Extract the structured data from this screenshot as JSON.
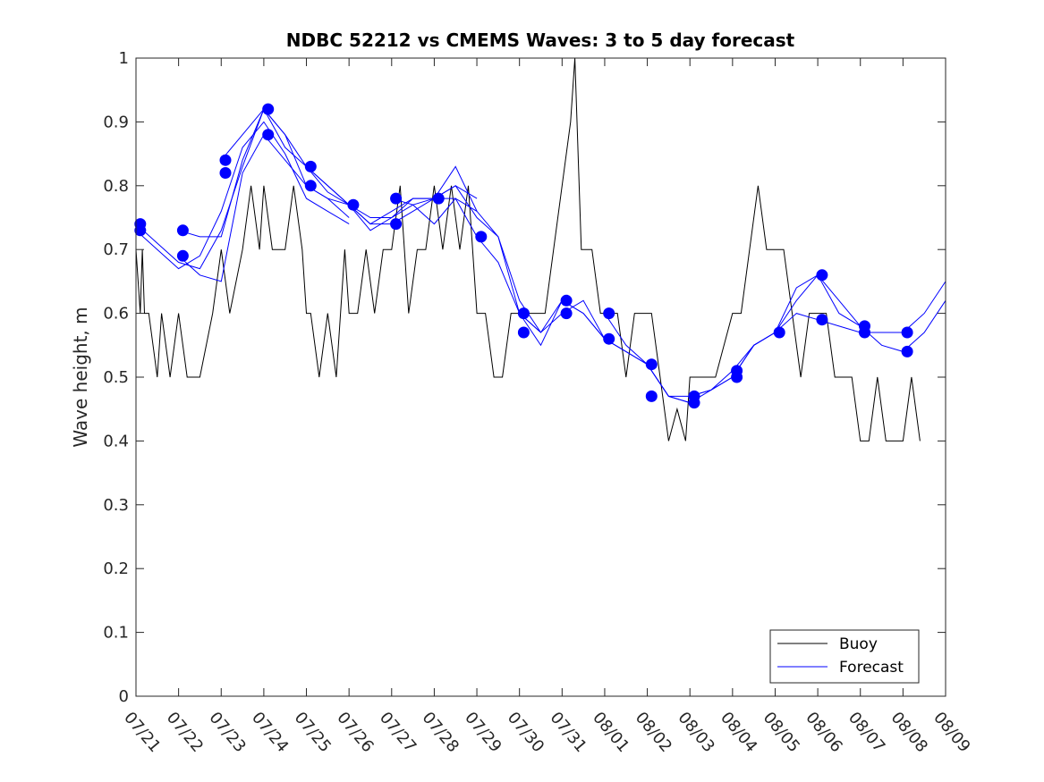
{
  "chart_data": {
    "type": "line",
    "title": "NDBC 52212 vs CMEMS Waves: 3 to 5 day forecast",
    "xlabel": "",
    "ylabel": "Wave height, m",
    "xlim": [
      "07/21",
      "08/09"
    ],
    "ylim": [
      0,
      1
    ],
    "yticks": [
      "0",
      "0.1",
      "0.2",
      "0.3",
      "0.4",
      "0.5",
      "0.6",
      "0.7",
      "0.8",
      "0.9",
      "1"
    ],
    "xticks": [
      "07/21",
      "07/22",
      "07/23",
      "07/24",
      "07/25",
      "07/26",
      "07/27",
      "07/28",
      "07/29",
      "07/30",
      "07/31",
      "08/01",
      "08/02",
      "08/03",
      "08/04",
      "08/05",
      "08/06",
      "08/07",
      "08/08",
      "08/09"
    ],
    "legend": {
      "placement": "bottom-right",
      "entries": [
        "Buoy",
        "Forecast"
      ]
    },
    "colors": {
      "buoy": "#000000",
      "forecast": "#0000ff"
    },
    "series": [
      {
        "name": "Buoy",
        "x": [
          0,
          0.1,
          0.15,
          0.2,
          0.3,
          0.5,
          0.6,
          0.8,
          1.0,
          1.2,
          1.5,
          1.8,
          2.0,
          2.2,
          2.5,
          2.7,
          2.9,
          3.0,
          3.2,
          3.5,
          3.7,
          3.9,
          4.0,
          4.1,
          4.3,
          4.5,
          4.7,
          4.9,
          5.0,
          5.2,
          5.4,
          5.6,
          5.8,
          6.0,
          6.2,
          6.4,
          6.6,
          6.8,
          7.0,
          7.2,
          7.4,
          7.6,
          7.8,
          8.0,
          8.2,
          8.4,
          8.6,
          8.8,
          9.0,
          9.2,
          9.4,
          9.6,
          9.8,
          10.0,
          10.2,
          10.3,
          10.35,
          10.4,
          10.45,
          10.55,
          10.7,
          10.9,
          11.1,
          11.3,
          11.5,
          11.7,
          11.9,
          12.1,
          12.3,
          12.5,
          12.7,
          12.9,
          13.0,
          13.1,
          13.2,
          13.4,
          13.6,
          13.8,
          14.0,
          14.2,
          14.4,
          14.6,
          14.8,
          15.0,
          15.2,
          15.4,
          15.6,
          15.8,
          16.0,
          16.2,
          16.4,
          16.6,
          16.8,
          17.0,
          17.2,
          17.4,
          17.6,
          17.8,
          18.0,
          18.2,
          18.4
        ],
        "values": [
          0.7,
          0.6,
          0.7,
          0.6,
          0.6,
          0.5,
          0.6,
          0.5,
          0.6,
          0.5,
          0.5,
          0.6,
          0.7,
          0.6,
          0.7,
          0.8,
          0.7,
          0.8,
          0.7,
          0.7,
          0.8,
          0.7,
          0.6,
          0.6,
          0.5,
          0.6,
          0.5,
          0.7,
          0.6,
          0.6,
          0.7,
          0.6,
          0.7,
          0.7,
          0.8,
          0.6,
          0.7,
          0.7,
          0.8,
          0.7,
          0.8,
          0.7,
          0.8,
          0.6,
          0.6,
          0.5,
          0.5,
          0.6,
          0.6,
          0.6,
          0.6,
          0.6,
          0.7,
          0.8,
          0.9,
          1.0,
          0.9,
          0.8,
          0.7,
          0.7,
          0.7,
          0.6,
          0.6,
          0.6,
          0.5,
          0.6,
          0.6,
          0.6,
          0.5,
          0.4,
          0.45,
          0.4,
          0.5,
          0.5,
          0.5,
          0.5,
          0.5,
          0.55,
          0.6,
          0.6,
          0.7,
          0.8,
          0.7,
          0.7,
          0.7,
          0.6,
          0.5,
          0.6,
          0.6,
          0.6,
          0.5,
          0.5,
          0.5,
          0.4,
          0.4,
          0.5,
          0.4,
          0.4,
          0.4,
          0.5,
          0.4
        ]
      },
      {
        "name": "Forecast",
        "segments": [
          {
            "x": [
              0.0,
              0.5,
              1.0,
              1.5,
              2.0,
              2.5,
              3.0,
              3.5,
              4.0,
              4.5,
              5.0
            ],
            "values": [
              0.74,
              0.71,
              0.68,
              0.67,
              0.73,
              0.83,
              0.92,
              0.88,
              0.8,
              0.78,
              0.75
            ]
          },
          {
            "x": [
              0.0,
              0.5,
              1.0,
              1.5,
              2.0,
              2.5,
              3.0,
              3.5,
              4.0,
              4.5,
              5.0
            ],
            "values": [
              0.73,
              0.7,
              0.67,
              0.69,
              0.76,
              0.86,
              0.9,
              0.85,
              0.78,
              0.76,
              0.74
            ]
          },
          {
            "x": [
              1.0,
              1.5,
              2.0,
              2.5,
              3.0,
              3.5,
              4.0,
              4.5,
              5.0,
              5.5,
              6.0,
              6.5,
              7.0,
              7.5,
              8.0
            ],
            "values": [
              0.73,
              0.72,
              0.72,
              0.84,
              0.92,
              0.86,
              0.83,
              0.8,
              0.77,
              0.75,
              0.75,
              0.77,
              0.78,
              0.8,
              0.78
            ]
          },
          {
            "x": [
              1.0,
              1.5,
              2.0,
              2.5,
              3.0,
              3.5,
              4.0,
              4.5,
              5.0,
              5.5,
              6.0,
              6.5,
              7.0,
              7.5,
              8.0
            ],
            "values": [
              0.69,
              0.66,
              0.65,
              0.82,
              0.88,
              0.84,
              0.8,
              0.78,
              0.77,
              0.74,
              0.74,
              0.76,
              0.78,
              0.78,
              0.76
            ]
          },
          {
            "x": [
              2.0,
              2.5,
              3.0,
              3.5,
              4.0,
              4.5,
              5.0,
              5.5,
              6.0,
              6.5,
              7.0,
              7.5,
              8.0,
              8.5,
              9.0,
              9.5
            ],
            "values": [
              0.84,
              0.88,
              0.92,
              0.88,
              0.83,
              0.79,
              0.77,
              0.74,
              0.76,
              0.78,
              0.78,
              0.83,
              0.76,
              0.72,
              0.62,
              0.57
            ]
          },
          {
            "x": [
              4.0,
              4.5,
              5.0,
              5.5,
              6.0,
              6.5,
              7.0,
              7.5,
              8.0,
              8.5,
              9.0,
              9.5,
              10.0,
              10.5,
              11.0
            ],
            "values": [
              0.83,
              0.8,
              0.77,
              0.73,
              0.75,
              0.78,
              0.78,
              0.8,
              0.75,
              0.72,
              0.6,
              0.55,
              0.62,
              0.6,
              0.56
            ]
          },
          {
            "x": [
              6.0,
              6.5,
              7.0,
              7.5,
              8.0,
              8.5,
              9.0,
              9.5,
              10.0,
              10.5,
              11.0,
              11.5,
              12.0,
              12.5,
              13.0
            ],
            "values": [
              0.78,
              0.77,
              0.74,
              0.78,
              0.72,
              0.68,
              0.6,
              0.57,
              0.6,
              0.62,
              0.56,
              0.54,
              0.52,
              0.47,
              0.46
            ]
          },
          {
            "x": [
              9.0,
              9.5,
              10.0,
              10.5,
              11.0,
              11.5,
              12.0,
              12.5,
              13.0,
              13.5,
              14.0,
              14.5,
              15.0,
              15.5,
              16.0,
              16.5,
              17.0
            ],
            "values": [
              0.6,
              0.57,
              0.62,
              0.6,
              0.56,
              0.54,
              0.52,
              0.47,
              0.47,
              0.48,
              0.51,
              0.55,
              0.57,
              0.62,
              0.66,
              0.62,
              0.58
            ]
          },
          {
            "x": [
              11.0,
              11.5,
              12.0,
              12.5,
              13.0,
              13.5,
              14.0,
              14.5,
              15.0,
              15.5,
              16.0,
              16.5,
              17.0,
              17.5,
              18.0,
              18.5,
              19.0
            ],
            "values": [
              0.6,
              0.55,
              0.52,
              0.47,
              0.46,
              0.48,
              0.5,
              0.55,
              0.57,
              0.6,
              0.59,
              0.58,
              0.57,
              0.57,
              0.57,
              0.6,
              0.65
            ]
          },
          {
            "x": [
              13.0,
              13.5,
              14.0,
              14.5,
              15.0,
              15.5,
              16.0,
              16.5,
              17.0,
              17.5,
              18.0,
              18.5,
              19.0
            ],
            "values": [
              0.47,
              0.48,
              0.5,
              0.55,
              0.57,
              0.64,
              0.66,
              0.6,
              0.58,
              0.55,
              0.54,
              0.57,
              0.62
            ]
          }
        ],
        "markers": {
          "x": [
            0.1,
            0.1,
            1.1,
            1.1,
            2.1,
            2.1,
            3.1,
            3.1,
            4.1,
            4.1,
            5.1,
            6.1,
            6.1,
            7.1,
            8.1,
            9.1,
            9.1,
            10.1,
            10.1,
            11.1,
            11.1,
            12.1,
            12.1,
            13.1,
            13.1,
            14.1,
            14.1,
            15.1,
            16.1,
            16.1,
            17.1,
            17.1,
            18.1,
            18.1
          ],
          "values": [
            0.74,
            0.73,
            0.73,
            0.69,
            0.84,
            0.82,
            0.92,
            0.88,
            0.83,
            0.8,
            0.77,
            0.78,
            0.74,
            0.78,
            0.72,
            0.6,
            0.57,
            0.62,
            0.6,
            0.6,
            0.56,
            0.52,
            0.47,
            0.47,
            0.46,
            0.51,
            0.5,
            0.57,
            0.66,
            0.59,
            0.58,
            0.57,
            0.57,
            0.54
          ]
        }
      }
    ]
  }
}
